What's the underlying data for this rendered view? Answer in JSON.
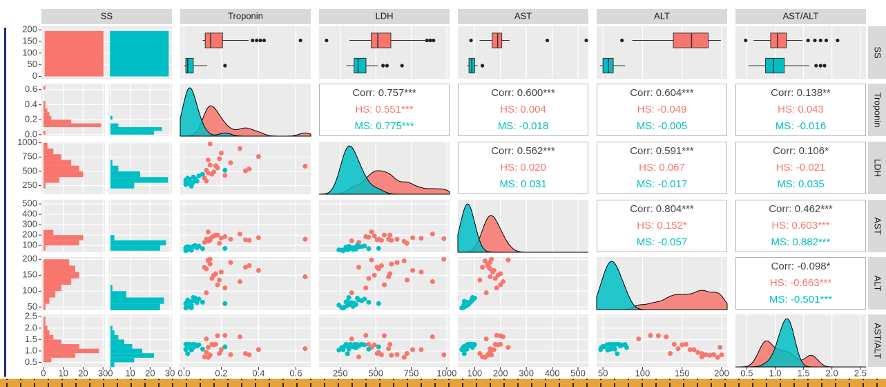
{
  "chart_data": {
    "type": "pairs",
    "groups": [
      {
        "color": "#f8766d",
        "data": [
          [
            0.12,
            520,
            160,
            170,
            0.94
          ],
          [
            0.14,
            610,
            150,
            185,
            0.81
          ],
          [
            0.15,
            450,
            180,
            140,
            1.29
          ],
          [
            0.13,
            700,
            140,
            195,
            0.72
          ],
          [
            0.18,
            560,
            200,
            120,
            1.67
          ],
          [
            0.2,
            820,
            170,
            160,
            1.06
          ],
          [
            0.11,
            380,
            130,
            175,
            0.74
          ],
          [
            0.16,
            490,
            190,
            150,
            1.27
          ],
          [
            0.25,
            650,
            160,
            190,
            0.84
          ],
          [
            0.3,
            900,
            210,
            130,
            1.62
          ],
          [
            0.35,
            540,
            150,
            180,
            0.83
          ],
          [
            0.4,
            760,
            175,
            165,
            1.06
          ],
          [
            0.22,
            430,
            185,
            110,
            1.68
          ],
          [
            0.14,
            980,
            165,
            200,
            0.83
          ],
          [
            0.12,
            330,
            145,
            95,
            1.53
          ],
          [
            0.17,
            600,
            200,
            155,
            1.29
          ],
          [
            0.65,
            590,
            160,
            145,
            1.1
          ],
          [
            0.13,
            470,
            230,
            198,
            1.16
          ],
          [
            0.19,
            720,
            120,
            135,
            0.89
          ],
          [
            0.33,
            510,
            155,
            175,
            0.89
          ]
        ]
      },
      {
        "color": "#00bfc4",
        "data": [
          [
            0.02,
            300,
            70,
            55,
            1.27
          ],
          [
            0.01,
            350,
            80,
            62,
            1.29
          ],
          [
            0.03,
            280,
            60,
            50,
            1.2
          ],
          [
            0.05,
            400,
            90,
            70,
            1.29
          ],
          [
            0.02,
            320,
            75,
            58,
            1.29
          ],
          [
            0.04,
            260,
            55,
            48,
            1.15
          ],
          [
            0.08,
            420,
            95,
            75,
            1.27
          ],
          [
            0.01,
            310,
            65,
            60,
            1.08
          ],
          [
            0.03,
            290,
            85,
            66,
            1.29
          ],
          [
            0.06,
            370,
            100,
            78,
            1.28
          ],
          [
            0.02,
            340,
            62,
            52,
            1.19
          ],
          [
            0.1,
            450,
            70,
            65,
            1.08
          ],
          [
            0.04,
            240,
            58,
            56,
            1.04
          ],
          [
            0.02,
            380,
            88,
            72,
            1.22
          ],
          [
            0.07,
            330,
            78,
            64,
            1.22
          ],
          [
            0.01,
            270,
            50,
            47,
            1.06
          ],
          [
            0.03,
            360,
            66,
            58,
            1.14
          ],
          [
            0.05,
            310,
            92,
            80,
            1.15
          ],
          [
            0.22,
            520,
            72,
            61,
            1.18
          ],
          [
            0.02,
            300,
            60,
            68,
            0.88
          ]
        ]
      }
    ],
    "variables": [
      {
        "name": "SS",
        "counts": [
          195,
          195
        ],
        "ylim": [
          -10,
          215
        ],
        "yticks": [
          0,
          50,
          100,
          150,
          200
        ],
        "count_lim": [
          -1,
          31
        ],
        "count_ticks": [
          0,
          10,
          20,
          30
        ]
      },
      {
        "name": "Troponin",
        "lim": [
          -0.02,
          0.68
        ],
        "ticks": [
          {
            "value": 0,
            "label": "0.0"
          },
          0.2,
          0.4,
          0.6
        ],
        "hist": {
          "bins": [
            0,
            0.05,
            0.1,
            0.15,
            0.2,
            0.25,
            0.3,
            0.35,
            0.4,
            0.45,
            0.5,
            0.55,
            0.6,
            0.65
          ],
          "counts": [
            [
              1,
              0,
              29,
              14,
              4,
              3,
              2,
              1,
              1,
              0,
              0,
              0,
              1
            ],
            [
              22,
              26,
              4,
              0,
              1,
              0,
              0,
              0,
              0,
              0,
              0,
              0,
              0
            ]
          ]
        },
        "box": [
          {
            "min": 0.1,
            "q1": 0.114,
            "median": 0.143,
            "q3": 0.207,
            "max": 0.346,
            "outliers": [
              0.368,
              0.39,
              0.41,
              0.43,
              0.625
            ]
          },
          {
            "min": 0,
            "q1": 0.01,
            "median": 0.02,
            "q3": 0.05,
            "max": 0.125,
            "outliers": [
              0.22
            ]
          }
        ]
      },
      {
        "name": "LDH",
        "lim": [
          100,
          1020
        ],
        "ticks": [
          250,
          500,
          750,
          1000
        ],
        "hist": {
          "bins": [
            100,
            200,
            300,
            400,
            500,
            600,
            700,
            800,
            900,
            1000
          ],
          "counts": [
            [
              0,
              1,
              8,
              20,
              18,
              14,
              9,
              5,
              2
            ],
            [
              0,
              12,
              29,
              15,
              4,
              1,
              0,
              0,
              0
            ]
          ]
        },
        "box": [
          {
            "min": 315,
            "q1": 468,
            "median": 514,
            "q3": 606,
            "max": 847,
            "outliers": [
              153,
              861,
              884,
              907
            ]
          },
          {
            "min": 292,
            "q1": 347,
            "median": 375,
            "q3": 431,
            "max": 514,
            "outliers": [
              551,
              579,
              685
            ]
          }
        ]
      },
      {
        "name": "AST",
        "lim": [
          35,
          540
        ],
        "ticks": [
          100,
          200,
          300,
          400,
          500
        ],
        "hist": {
          "bins": [
            0,
            50,
            100,
            150,
            200,
            250,
            300,
            350,
            400,
            450,
            500
          ],
          "counts": [
            [
              0,
              1,
              18,
              20,
              5,
              0,
              0,
              0,
              0,
              0
            ],
            [
              0,
              25,
              28,
              2,
              0,
              0,
              0,
              0,
              0,
              0
            ]
          ]
        },
        "box": [
          {
            "min": 119,
            "q1": 168,
            "median": 189,
            "q3": 205,
            "max": 235,
            "outliers": [
              86,
              381,
              532
            ]
          },
          {
            "min": 70,
            "q1": 78,
            "median": 89,
            "q3": 100,
            "max": 112,
            "outliers": [
              130
            ]
          }
        ]
      },
      {
        "name": "ALT",
        "lim": [
          42,
          207
        ],
        "ticks": [
          50,
          100,
          150,
          200
        ],
        "hist": {
          "bins": [
            40,
            60,
            80,
            100,
            120,
            140,
            160,
            180,
            200
          ],
          "counts": [
            [
              1,
              3,
              6,
              9,
              14,
              18,
              16,
              13
            ],
            [
              25,
              27,
              8,
              1,
              0,
              0,
              0,
              0
            ]
          ]
        },
        "box": [
          {
            "min": 87,
            "q1": 139,
            "median": 162,
            "q3": 183,
            "max": 199,
            "outliers": [
              74
            ]
          },
          {
            "min": 46,
            "q1": 50,
            "median": 57,
            "q3": 63,
            "max": 78,
            "outliers": []
          }
        ]
      },
      {
        "name": "AST/ALT",
        "lim": [
          0.3,
          2.6
        ],
        "ticks": [
          0.5,
          {
            "value": 1,
            "label": "1.0"
          },
          1.5,
          {
            "value": 2,
            "label": "2.0"
          },
          2.5
        ],
        "hist": {
          "bins": [
            0.3,
            0.5,
            0.7,
            0.9,
            1.1,
            1.3,
            1.5,
            1.7,
            1.9,
            2.1,
            2.3,
            2.5
          ],
          "counts": [
            [
              0,
              4,
              16,
              28,
              18,
              9,
              5,
              3,
              2,
              1,
              1
            ],
            [
              2,
              12,
              22,
              16,
              11,
              7,
              4,
              2,
              1,
              0,
              0
            ]
          ]
        },
        "box": [
          {
            "min": 0.62,
            "q1": 0.92,
            "median": 1.04,
            "q3": 1.2,
            "max": 1.48,
            "outliers": [
              0.48,
              1.58,
              1.7,
              1.8,
              1.9,
              2.1
            ]
          },
          {
            "min": 0.53,
            "q1": 0.83,
            "median": 0.97,
            "q3": 1.16,
            "max": 1.6,
            "outliers": [
              1.72,
              1.8,
              1.87
            ]
          }
        ]
      }
    ],
    "correlations": [
      [
        [
          "Corr: 0.757***",
          "HS: 0.551***",
          "MS: 0.775***"
        ],
        [
          "Corr: 0.600***",
          "HS: 0.004",
          "MS: -0.018"
        ],
        [
          "Corr: 0.604***",
          "HS: -0.049",
          "MS: -0.005"
        ],
        [
          "Corr: 0.138**",
          "HS: 0.043",
          "MS: -0.016"
        ]
      ],
      [
        [
          "Corr: 0.562***",
          "HS: 0.020",
          "MS: 0.031"
        ],
        [
          "Corr: 0.591***",
          "HS: 0.067",
          "MS: -0.017"
        ],
        [
          "Corr: 0.106*",
          "HS: -0.021",
          "MS: 0.035"
        ]
      ],
      [
        [
          "Corr: 0.804***",
          "HS: 0.152*",
          "MS: -0.057"
        ],
        [
          "Corr: 0.462***",
          "HS: 0.603***",
          "MS: 0.882***"
        ]
      ],
      [
        [
          "Corr: -0.098*",
          "HS: -0.663***",
          "MS: -0.501***"
        ]
      ]
    ]
  }
}
